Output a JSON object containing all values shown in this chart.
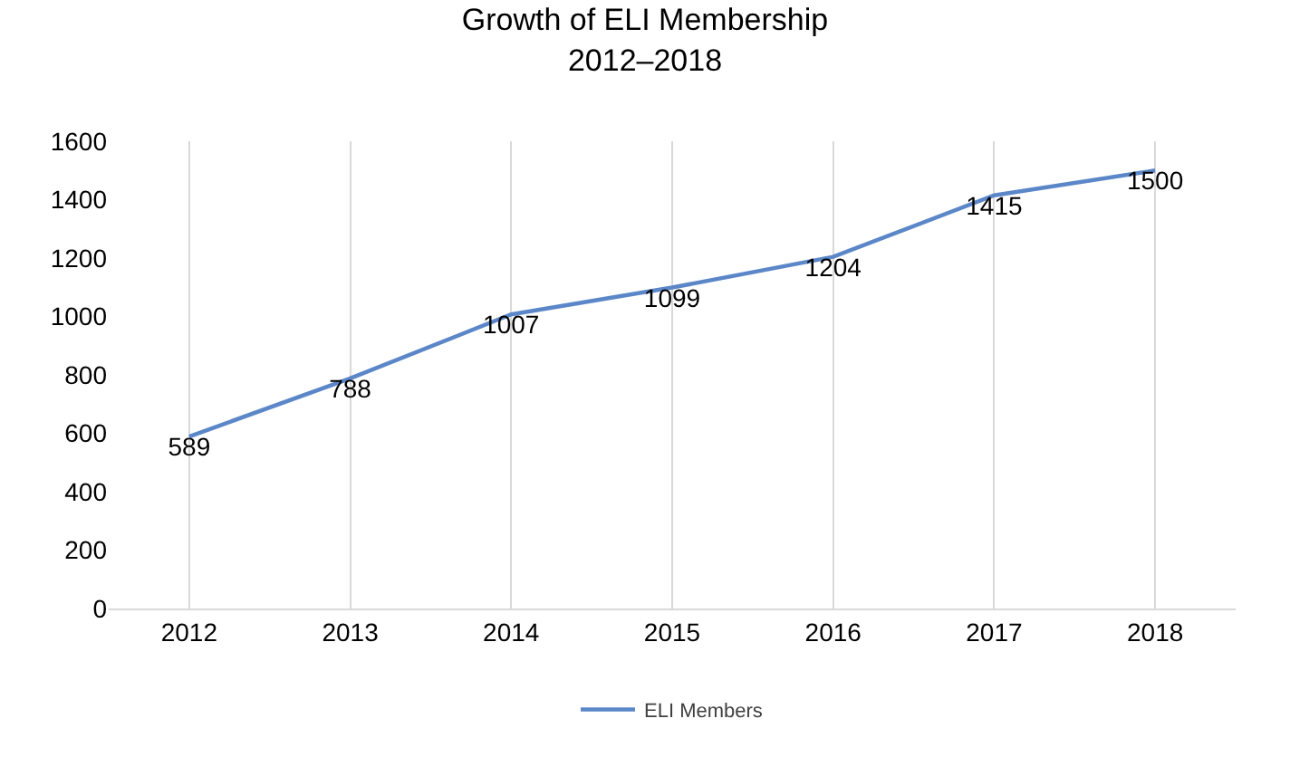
{
  "chart_data": {
    "type": "line",
    "title": "Growth of ELI Membership\n2012–2018",
    "categories": [
      "2012",
      "2013",
      "2014",
      "2015",
      "2016",
      "2017",
      "2018"
    ],
    "series": [
      {
        "name": "ELI Members",
        "color": "#5b87c8",
        "values": [
          589,
          788,
          1007,
          1099,
          1204,
          1415,
          1500
        ]
      }
    ],
    "ylim": [
      0,
      1600
    ],
    "yticks": [
      0,
      200,
      400,
      600,
      800,
      1000,
      1200,
      1400,
      1600
    ],
    "grid": "x",
    "legend": "bottom",
    "data_labels": true,
    "marker": "none",
    "line_style": "solid"
  }
}
